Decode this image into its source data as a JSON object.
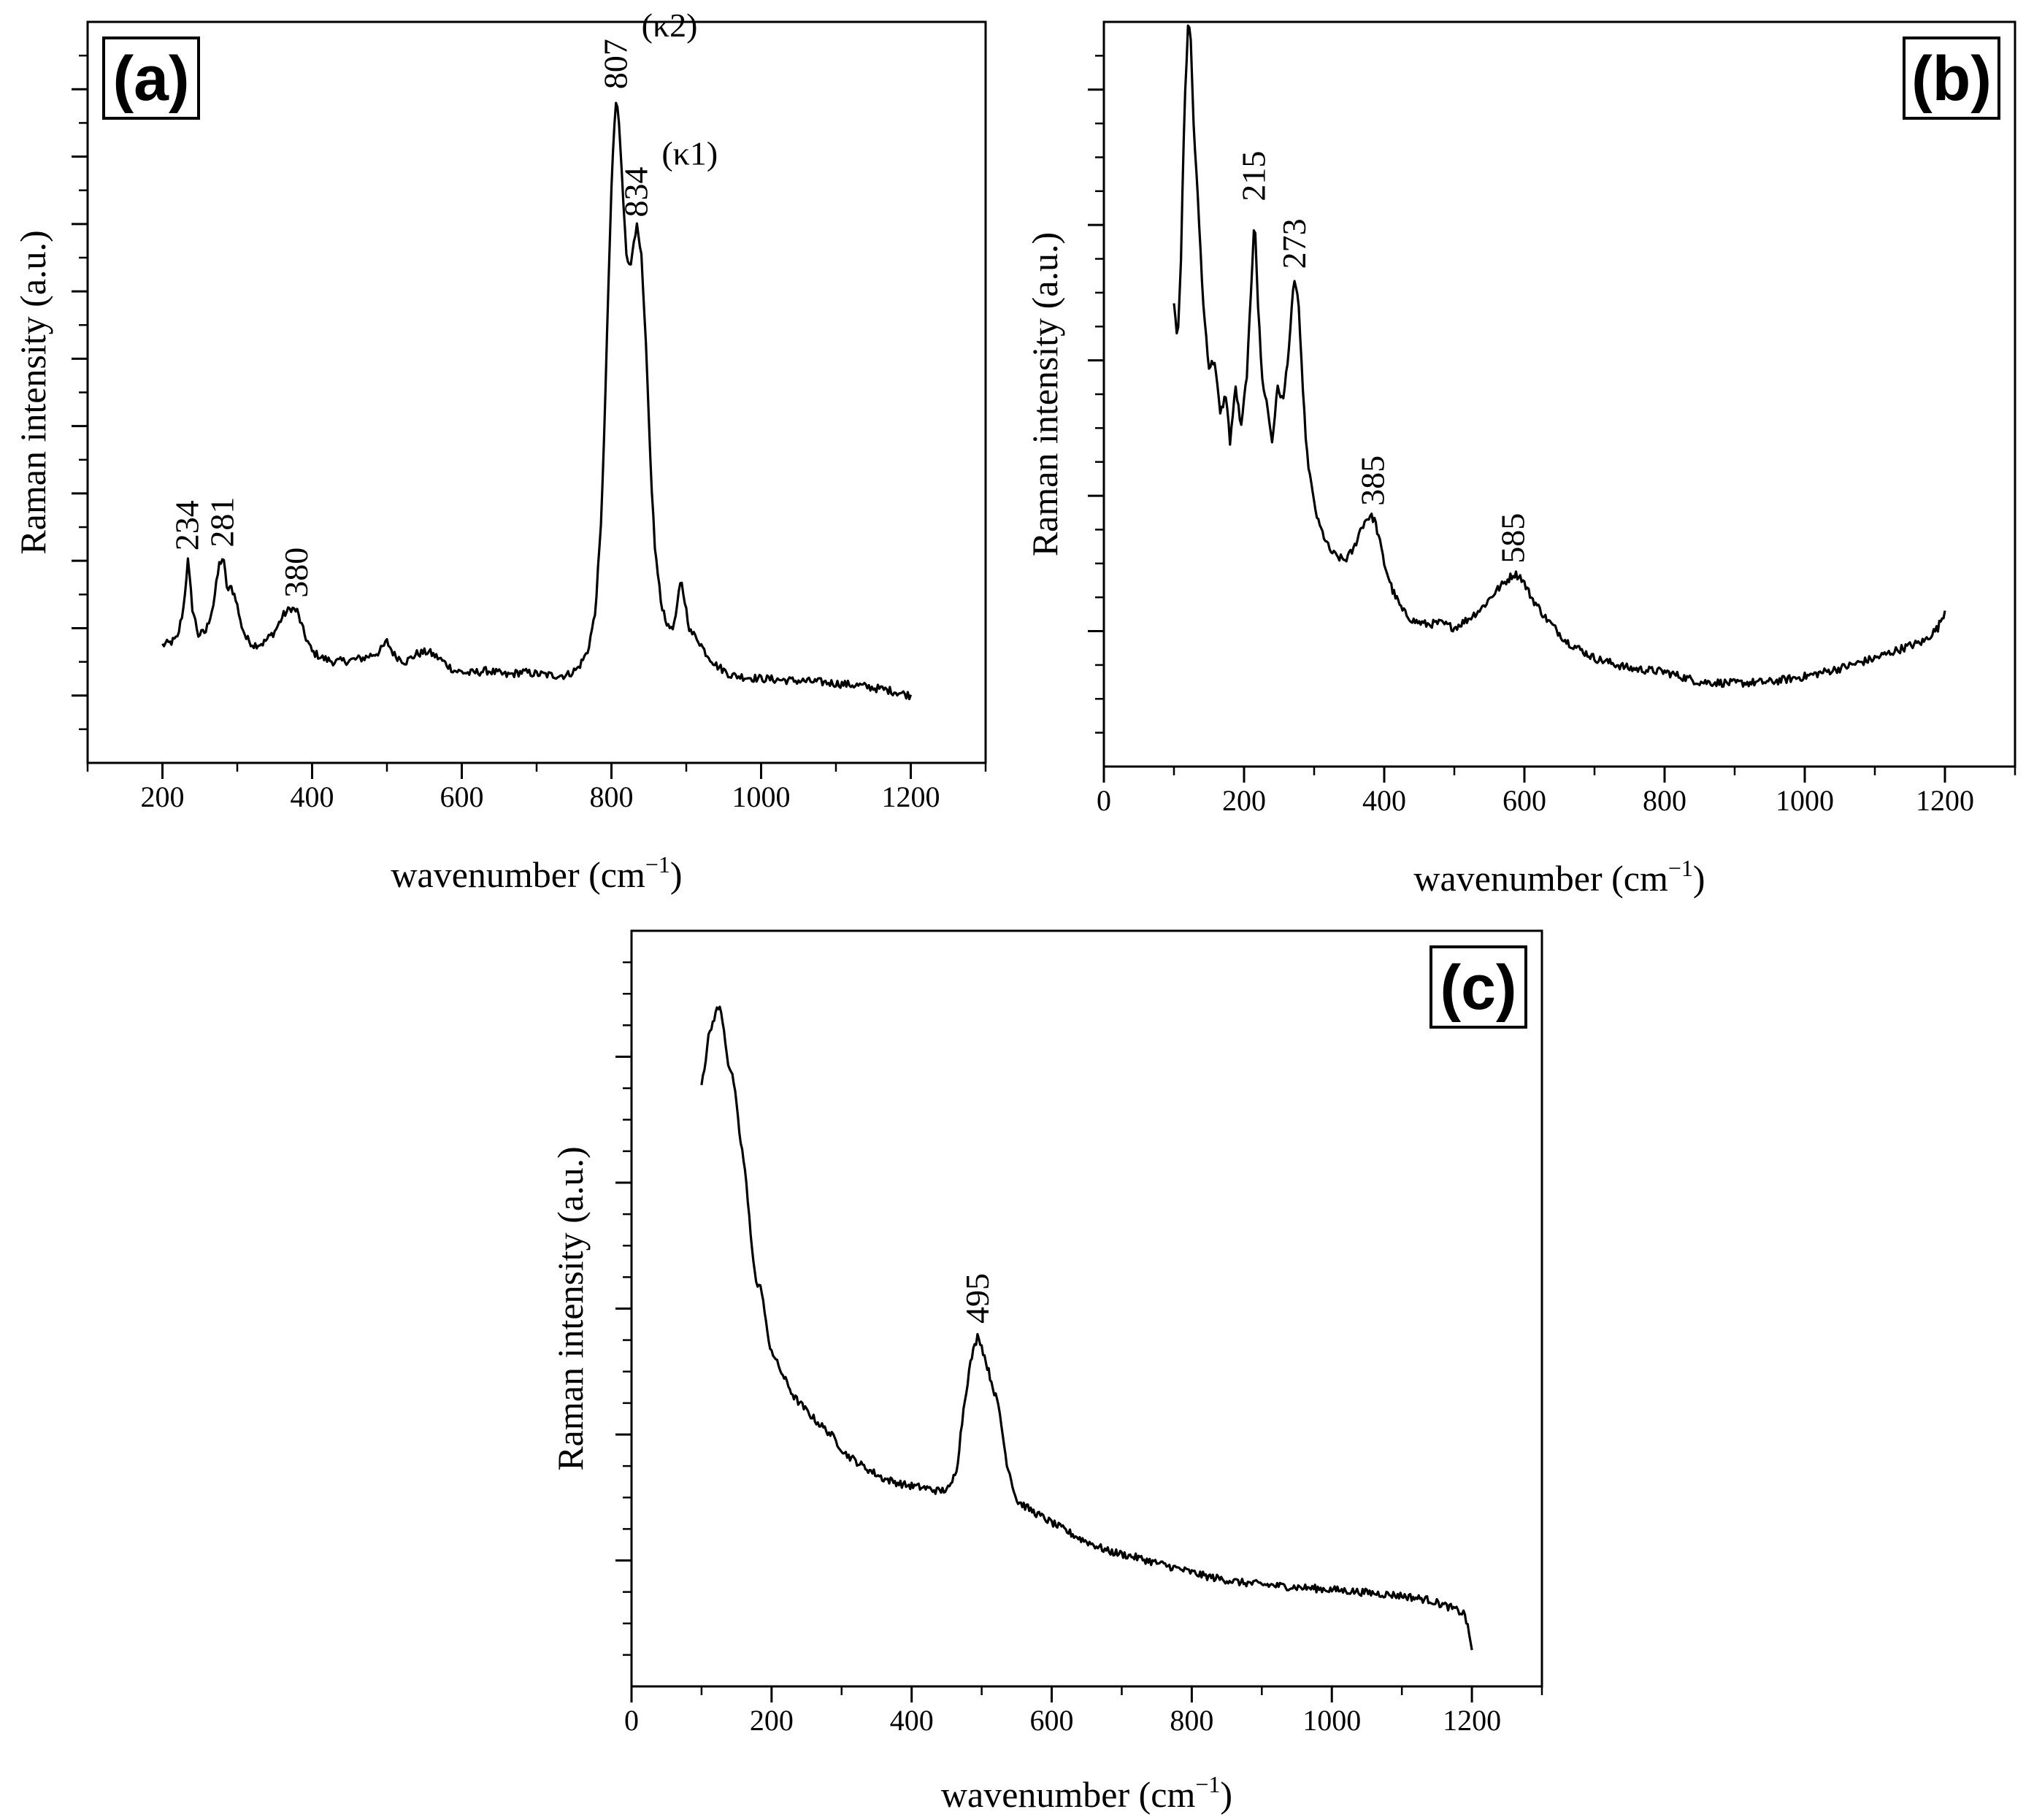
{
  "chart_data": [
    {
      "type": "line",
      "panel_label": "(a)",
      "xlabel": "wavenumber (cm",
      "xlabel_sup": "−1",
      "xlabel_close": ")",
      "ylabel": "Raman intensity (a.u.)",
      "xlim": [
        100,
        1300
      ],
      "ylim": [
        0,
        110
      ],
      "x_ticks": [
        200,
        400,
        600,
        800,
        1000,
        1200
      ],
      "x_tick_labels": [
        "200",
        "400",
        "600",
        "800",
        "1000",
        "1200"
      ],
      "y_major_ticks": [
        10,
        20,
        30,
        40,
        50,
        60,
        70,
        80,
        90,
        100
      ],
      "y_minor_step": 5,
      "x_minor_step": 100,
      "series": [
        {
          "name": "spectrum-a",
          "x": [
            200,
            210,
            220,
            228,
            234,
            240,
            248,
            258,
            268,
            276,
            281,
            287,
            292,
            298,
            304,
            312,
            322,
            335,
            350,
            362,
            372,
            380,
            390,
            400,
            415,
            430,
            450,
            470,
            490,
            500,
            510,
            525,
            540,
            555,
            570,
            590,
            610,
            635,
            660,
            680,
            700,
            720,
            740,
            755,
            768,
            778,
            786,
            792,
            797,
            801,
            805,
            807,
            810,
            815,
            820,
            825,
            830,
            834,
            840,
            846,
            852,
            858,
            866,
            876,
            884,
            890,
            893,
            898,
            905,
            915,
            925,
            940,
            960,
            990,
            1030,
            1080,
            1130,
            1170,
            1200
          ],
          "values": [
            17.5,
            17.8,
            18.5,
            23.0,
            30.0,
            23.0,
            19.0,
            19.5,
            23.5,
            29.5,
            30.5,
            25.5,
            26.0,
            24.5,
            21.0,
            18.5,
            17.5,
            17.8,
            19.5,
            22.0,
            23.0,
            22.5,
            19.0,
            16.5,
            15.5,
            15.0,
            15.2,
            15.6,
            16.5,
            18.0,
            16.0,
            15.0,
            16.2,
            16.5,
            15.5,
            13.7,
            13.3,
            13.7,
            13.0,
            13.5,
            13.2,
            13.0,
            13.0,
            14.0,
            16.5,
            22.0,
            35.0,
            55.0,
            75.0,
            88.0,
            97.0,
            98.5,
            95.0,
            85.0,
            76.0,
            73.0,
            78.0,
            79.5,
            75.0,
            62.0,
            45.0,
            32.0,
            24.0,
            20.0,
            20.5,
            25.0,
            27.0,
            24.0,
            19.5,
            18.5,
            16.5,
            14.5,
            13.0,
            12.6,
            12.3,
            12.0,
            11.5,
            10.8,
            10.0
          ]
        }
      ],
      "annotations": [
        {
          "x": 234,
          "y": 30.0,
          "text": "234"
        },
        {
          "x": 281,
          "y": 30.5,
          "text": "281"
        },
        {
          "x": 380,
          "y": 23.0,
          "text": "380"
        },
        {
          "x": 807,
          "y": 98.5,
          "text": "807",
          "suffix": "(κ2)"
        },
        {
          "x": 834,
          "y": 79.5,
          "text": "834",
          "suffix": "(κ1)"
        }
      ]
    },
    {
      "type": "line",
      "panel_label": "(b)",
      "xlabel": "wavenumber (cm",
      "xlabel_sup": "−1",
      "xlabel_close": ")",
      "ylabel": "Raman intensity (a.u.)",
      "xlim": [
        0,
        1300
      ],
      "ylim": [
        0,
        110
      ],
      "x_ticks": [
        0,
        200,
        400,
        600,
        800,
        1000,
        1200
      ],
      "x_tick_labels": [
        "0",
        "200",
        "400",
        "600",
        "800",
        "1000",
        "1200"
      ],
      "y_major_ticks": [
        20,
        40,
        60,
        80,
        100
      ],
      "y_minor_step": 5,
      "x_minor_step": 100,
      "series": [
        {
          "name": "spectrum-b",
          "x": [
            100,
            105,
            110,
            115,
            120,
            123,
            128,
            135,
            142,
            150,
            158,
            166,
            174,
            180,
            188,
            196,
            204,
            210,
            215,
            220,
            226,
            232,
            240,
            248,
            256,
            264,
            270,
            273,
            278,
            284,
            290,
            298,
            306,
            314,
            322,
            332,
            344,
            356,
            366,
            374,
            380,
            386,
            392,
            400,
            412,
            426,
            442,
            460,
            480,
            500,
            520,
            540,
            560,
            575,
            585,
            595,
            610,
            630,
            660,
            700,
            750,
            800,
            850,
            900,
            950,
            1000,
            1050,
            1100,
            1140,
            1170,
            1190,
            1200
          ],
          "values": [
            69,
            63,
            75,
            97,
            109,
            110,
            95,
            82,
            68,
            59,
            60,
            52,
            55,
            48,
            56,
            50,
            58,
            70,
            82,
            68,
            57,
            54,
            48,
            56,
            54,
            62,
            70,
            72,
            68,
            55,
            46,
            40,
            36,
            34,
            32,
            31,
            30.5,
            32,
            35,
            36.5,
            37,
            36.5,
            34,
            30,
            26,
            23,
            21.5,
            21,
            21.2,
            20.5,
            21.8,
            23.5,
            26,
            27.5,
            28.5,
            28,
            25,
            22,
            18.5,
            16,
            14.5,
            14,
            12.5,
            12.3,
            12.5,
            13.3,
            14.5,
            16,
            17.5,
            18.5,
            20.5,
            23
          ]
        }
      ],
      "annotations": [
        {
          "x": 215,
          "y": 82,
          "text": "215"
        },
        {
          "x": 273,
          "y": 72,
          "text": "273"
        },
        {
          "x": 385,
          "y": 37,
          "text": "385"
        },
        {
          "x": 585,
          "y": 28.5,
          "text": "585"
        }
      ]
    },
    {
      "type": "line",
      "panel_label": "(c)",
      "xlabel": "wavenumber (cm",
      "xlabel_sup": "−1",
      "xlabel_close": ")",
      "ylabel": "Raman intensity (a.u.)",
      "xlim": [
        0,
        1300
      ],
      "ylim": [
        0,
        120
      ],
      "x_ticks": [
        0,
        200,
        400,
        600,
        800,
        1000,
        1200
      ],
      "x_tick_labels": [
        "0",
        "200",
        "400",
        "600",
        "800",
        "1000",
        "1200"
      ],
      "y_major_ticks": [
        20,
        40,
        60,
        80,
        100
      ],
      "y_minor_step": 5,
      "x_minor_step": 100,
      "series": [
        {
          "name": "spectrum-c",
          "x": [
            100,
            105,
            110,
            115,
            120,
            125,
            130,
            138,
            146,
            154,
            162,
            170,
            178,
            186,
            195,
            205,
            218,
            232,
            248,
            265,
            285,
            305,
            330,
            360,
            390,
            420,
            440,
            455,
            465,
            475,
            485,
            495,
            505,
            515,
            525,
            535,
            550,
            570,
            600,
            640,
            680,
            720,
            770,
            820,
            870,
            920,
            970,
            1020,
            1060,
            1100,
            1140,
            1170,
            1190,
            1200
          ],
          "values": [
            96,
            99,
            103,
            105,
            107,
            108,
            106,
            99,
            96,
            88,
            82,
            72,
            64,
            63,
            55,
            52,
            49,
            46,
            44,
            42,
            40,
            37,
            35,
            33,
            32,
            31.5,
            31,
            31.5,
            35,
            45,
            52,
            56,
            52,
            48,
            44,
            36,
            29.5,
            28,
            26,
            23.5,
            21.5,
            20.5,
            19,
            17.5,
            16.5,
            16.0,
            15.6,
            15.2,
            14.8,
            14.4,
            13.7,
            12.5,
            11.5,
            6
          ]
        }
      ],
      "annotations": [
        {
          "x": 495,
          "y": 56,
          "text": "495"
        }
      ]
    }
  ]
}
